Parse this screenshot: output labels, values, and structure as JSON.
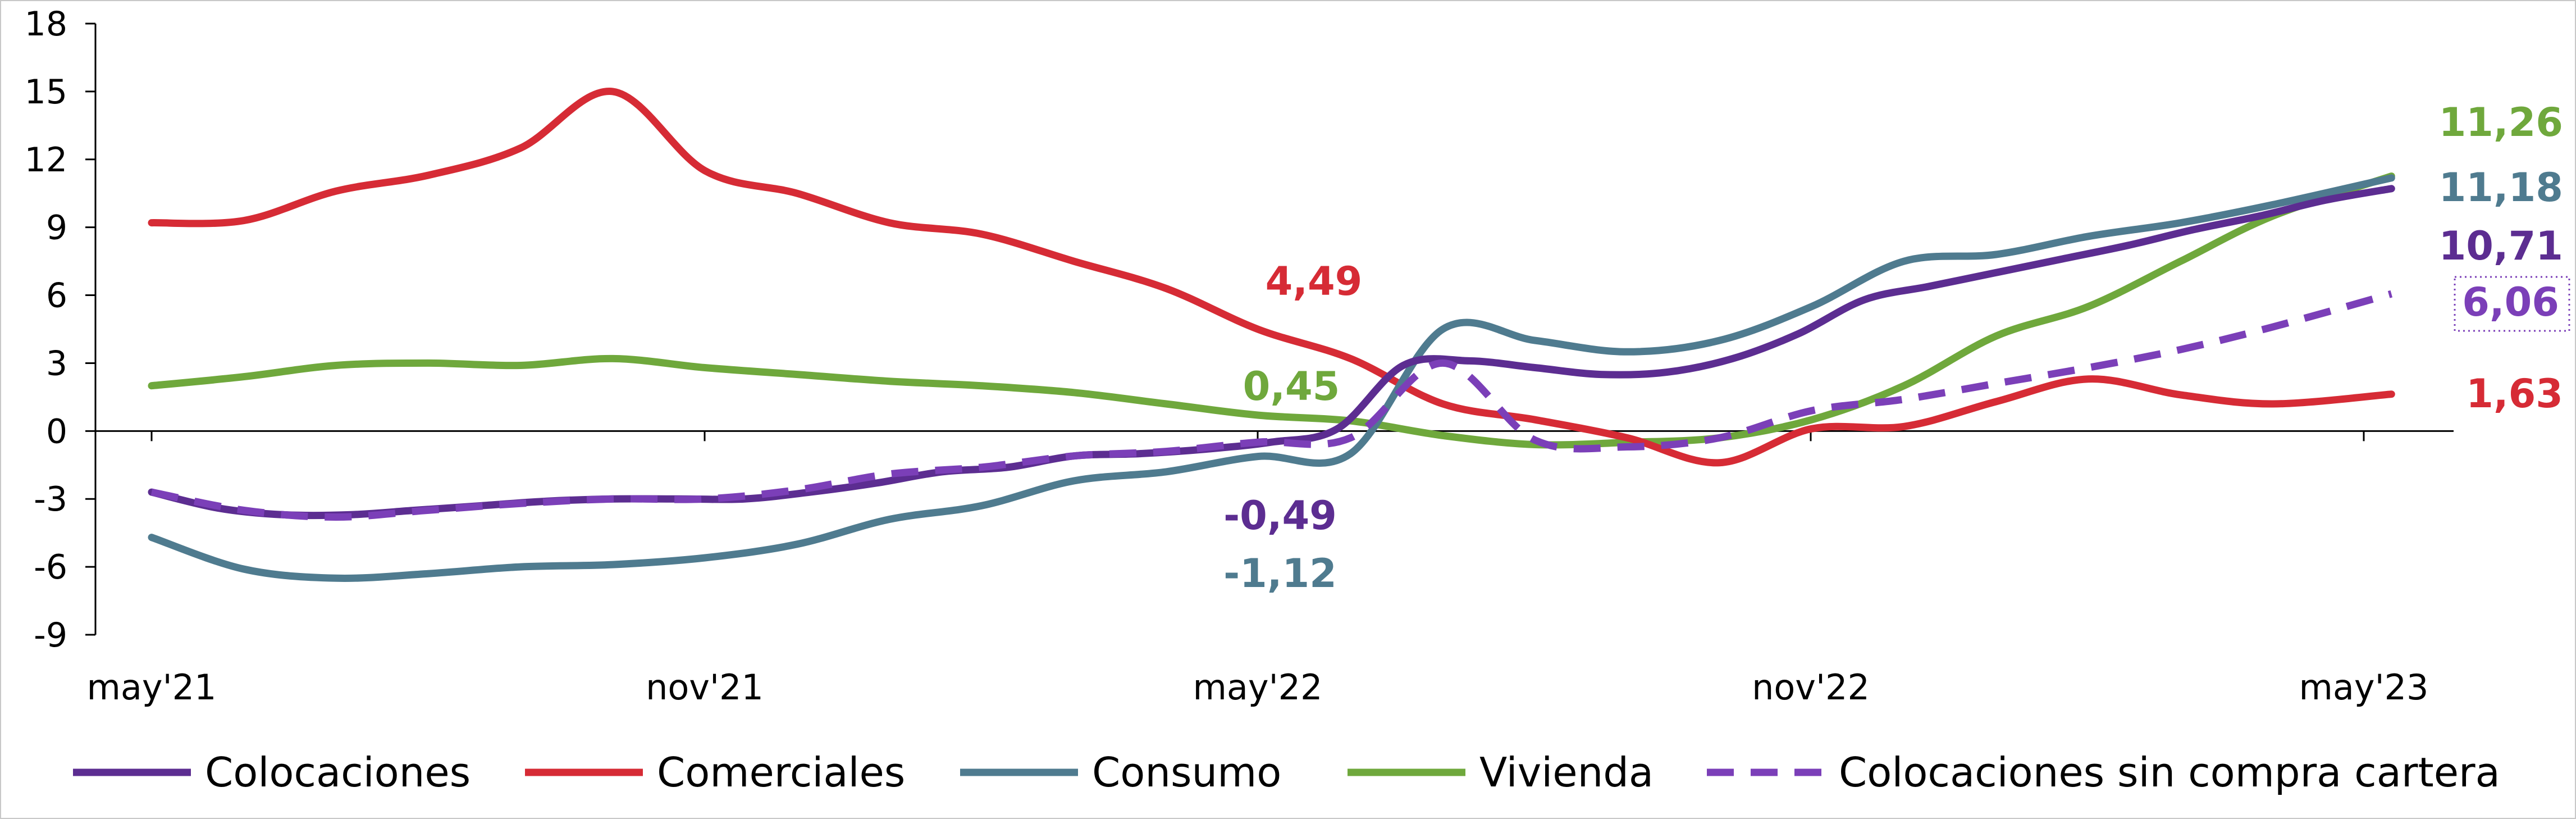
{
  "chart_data": {
    "type": "line",
    "title": "",
    "xlabel": "",
    "ylabel": "",
    "ylim": [
      -9,
      18
    ],
    "yticks": [
      "18",
      "15",
      "12",
      "9",
      "6",
      "3",
      "0",
      "-3",
      "-6",
      "-9"
    ],
    "ytick_values": [
      18,
      15,
      12,
      9,
      6,
      3,
      0,
      -3,
      -6,
      -9
    ],
    "x_tick_labels": [
      "may'21",
      "nov'21",
      "may'22",
      "nov'22",
      "may'23"
    ],
    "x_tick_indices": [
      0,
      12,
      24,
      36,
      48
    ],
    "x_range": [
      0,
      48
    ],
    "grid": false,
    "legend_position": "bottom",
    "series": [
      {
        "name": "Colocaciones",
        "color": "#5c2d91",
        "dash": false,
        "values": [
          -2.7,
          -3.4,
          -3.7,
          -3.7,
          -3.5,
          -3.3,
          -3.1,
          -3.0,
          -3.0,
          -3.0,
          -2.7,
          -2.3,
          -1.8,
          -1.6,
          -1.1,
          -1.0,
          -0.8,
          -0.49,
          0.1,
          2.9,
          3.1,
          2.8,
          2.5,
          2.6,
          3.2,
          4.3,
          5.8,
          6.4,
          7.0,
          7.6,
          8.2,
          8.9,
          9.5,
          10.2,
          10.71
        ],
        "x": [
          0,
          1,
          2,
          3,
          4,
          5,
          6,
          7,
          8,
          9,
          10,
          11,
          12,
          13,
          14,
          15,
          16,
          17,
          18,
          19,
          20,
          21,
          22,
          23,
          24,
          25,
          26,
          27,
          28,
          29,
          30,
          31,
          32,
          33,
          34
        ]
      },
      {
        "name": "Comerciales",
        "color": "#d62b35",
        "dash": false,
        "values": [
          9.2,
          9.3,
          10.6,
          11.3,
          12.5,
          15.0,
          11.5,
          10.5,
          9.2,
          8.7,
          7.5,
          6.3,
          4.49,
          3.2,
          1.2,
          0.5,
          -0.3,
          -1.4,
          0.1,
          0.2,
          1.3,
          2.3,
          1.6,
          1.2,
          1.63
        ],
        "x": [
          0,
          1.4,
          2.8,
          4.2,
          5.6,
          7,
          8.4,
          9.8,
          11.2,
          12.6,
          14,
          15.4,
          16.8,
          18.2,
          19.6,
          21,
          22.4,
          23.8,
          25.2,
          26.6,
          28,
          29.4,
          30.8,
          32.2,
          34
        ]
      },
      {
        "name": "Consumo",
        "color": "#4f7b8f",
        "dash": false,
        "values": [
          -4.7,
          -6.1,
          -6.5,
          -6.3,
          -6.0,
          -5.9,
          -5.6,
          -5.0,
          -3.9,
          -3.3,
          -2.2,
          -1.8,
          -1.12,
          -1.0,
          4.5,
          4.0,
          3.5,
          4.0,
          5.5,
          7.5,
          7.8,
          8.6,
          9.2,
          10.0,
          11.18
        ],
        "x": [
          0,
          1.4,
          2.8,
          4.2,
          5.6,
          7,
          8.4,
          9.8,
          11.2,
          12.6,
          14,
          15.4,
          16.8,
          18.2,
          19.6,
          21,
          22.4,
          23.8,
          25.2,
          26.6,
          28,
          29.4,
          30.8,
          32.2,
          34
        ]
      },
      {
        "name": "Vivienda",
        "color": "#6fa83c",
        "dash": false,
        "values": [
          2.0,
          2.4,
          2.9,
          3.0,
          2.9,
          3.2,
          2.8,
          2.5,
          2.2,
          2.0,
          1.7,
          1.2,
          0.7,
          0.45,
          -0.2,
          -0.6,
          -0.5,
          -0.3,
          0.5,
          2.0,
          4.2,
          5.5,
          7.5,
          9.5,
          11.26
        ],
        "x": [
          0,
          1.4,
          2.8,
          4.2,
          5.6,
          7,
          8.4,
          9.8,
          11.2,
          12.6,
          14,
          15.4,
          16.8,
          18.2,
          19.6,
          21,
          22.4,
          23.8,
          25.2,
          26.6,
          28,
          29.4,
          30.8,
          32.2,
          34
        ]
      },
      {
        "name": "Colocaciones sin compra cartera",
        "color": "#7b3fb8",
        "dash": true,
        "values": [
          -2.7,
          -3.5,
          -3.8,
          -3.5,
          -3.2,
          -3.0,
          -3.0,
          -2.6,
          -1.9,
          -1.6,
          -1.1,
          -0.9,
          -0.49,
          -0.3,
          3.0,
          -0.4,
          -0.7,
          -0.3,
          0.9,
          1.4,
          2.1,
          2.8,
          3.6,
          4.6,
          6.06
        ],
        "x": [
          0,
          1.4,
          2.8,
          4.2,
          5.6,
          7,
          8.4,
          9.8,
          11.2,
          12.6,
          14,
          15.4,
          16.8,
          18.2,
          19.6,
          21,
          22.4,
          23.8,
          25.2,
          26.6,
          28,
          29.4,
          30.8,
          32.2,
          34
        ]
      }
    ],
    "annotations": [
      {
        "text": "4,49",
        "color": "#d62b35"
      },
      {
        "text": "0,45",
        "color": "#6fa83c"
      },
      {
        "text": "-0,49",
        "color": "#5c2d91"
      },
      {
        "text": "-1,12",
        "color": "#4f7b8f"
      },
      {
        "text": "11,26",
        "color": "#6fa83c"
      },
      {
        "text": "11,18",
        "color": "#4f7b8f"
      },
      {
        "text": "10,71",
        "color": "#5c2d91"
      },
      {
        "text": "6,06",
        "color": "#7b3fb8",
        "boxed": true
      },
      {
        "text": "1,63",
        "color": "#d62b35"
      }
    ]
  }
}
